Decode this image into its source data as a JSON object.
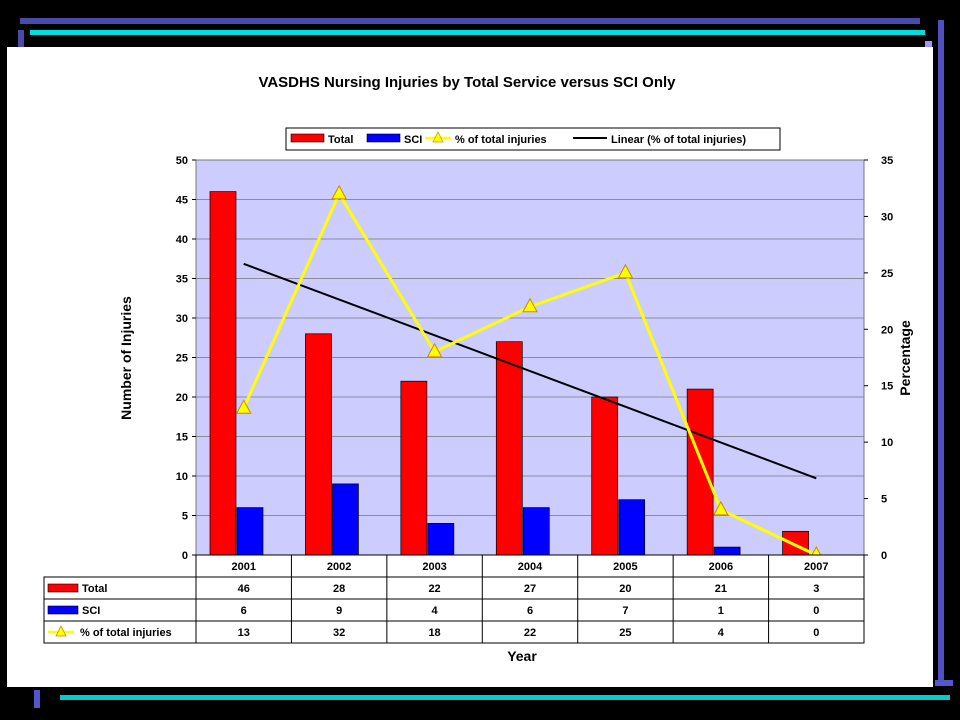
{
  "chart_data": {
    "type": "bar",
    "title": "VASDHS Nursing Injuries by Total Service versus SCI Only",
    "xlabel": "Year",
    "ylabel": "Number of Injuries",
    "y2label": "Percentage",
    "categories": [
      "2001",
      "2002",
      "2003",
      "2004",
      "2005",
      "2006",
      "2007"
    ],
    "ylim": [
      0,
      50
    ],
    "yticks": [
      0,
      5,
      10,
      15,
      20,
      25,
      30,
      35,
      40,
      45,
      50
    ],
    "y2lim": [
      0,
      35
    ],
    "y2ticks": [
      0,
      5,
      10,
      15,
      20,
      25,
      30,
      35
    ],
    "grid": true,
    "legend_position": "top",
    "series": [
      {
        "name": "Total",
        "kind": "bar",
        "axis": "left",
        "color": "#ff0000",
        "values": [
          46,
          28,
          22,
          27,
          20,
          21,
          3
        ]
      },
      {
        "name": "SCI",
        "kind": "bar",
        "axis": "left",
        "color": "#0000ff",
        "values": [
          6,
          9,
          4,
          6,
          7,
          1,
          0
        ]
      },
      {
        "name": "% of total injuries",
        "kind": "line",
        "axis": "right",
        "color": "#ffff00",
        "marker": "triangle",
        "values": [
          13,
          32,
          18,
          22,
          25,
          4,
          0
        ]
      },
      {
        "name": "Linear (% of total injuries)",
        "kind": "trendline",
        "axis": "right",
        "color": "#000000",
        "start": 25.8,
        "end": 6.8
      }
    ],
    "data_table": {
      "rows": [
        {
          "label": "Total",
          "values": [
            "46",
            "28",
            "22",
            "27",
            "20",
            "21",
            "3"
          ]
        },
        {
          "label": "SCI",
          "values": [
            "6",
            "9",
            "4",
            "6",
            "7",
            "1",
            "0"
          ]
        },
        {
          "label": "% of total injuries",
          "values": [
            "13",
            "32",
            "18",
            "22",
            "25",
            "4",
            "0"
          ]
        }
      ]
    },
    "colors": {
      "plot_bg": "#ccccff",
      "slide_bg": "#000000",
      "accent_cyan": "#00ffff",
      "accent_blue": "#6666ff"
    }
  }
}
